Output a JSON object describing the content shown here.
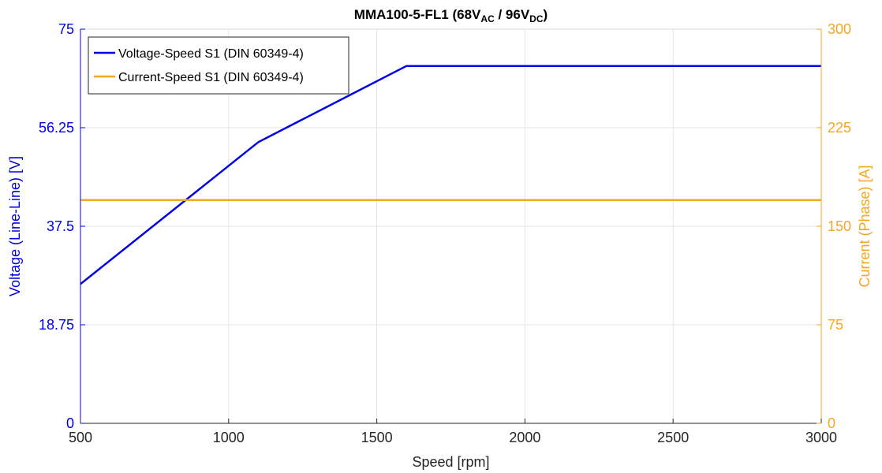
{
  "chart_data": {
    "type": "line",
    "title": {
      "base": "MMA100-5-FL1 (68V",
      "sub1": "AC",
      "mid": " / 96V",
      "sub2": "DC",
      "end": ")"
    },
    "xlabel": "Speed [rpm]",
    "ylabel_left": "Voltage (Line-Line) [V]",
    "ylabel_right": "Current (Phase) [A]",
    "xlim": [
      500,
      3000
    ],
    "ylim_left": [
      0,
      75
    ],
    "ylim_right": [
      0,
      300
    ],
    "xticks": [
      500,
      1000,
      1500,
      2000,
      2500,
      3000
    ],
    "yticks_left": [
      "0",
      "18.75",
      "37.5",
      "56.25",
      "75"
    ],
    "yticks_left_values": [
      0,
      18.75,
      37.5,
      56.25,
      75
    ],
    "yticks_right": [
      0,
      75,
      150,
      225,
      300
    ],
    "grid": true,
    "legend_position": "top-left",
    "series": [
      {
        "name": "Voltage-Speed S1 (DIN 60349-4)",
        "axis": "left",
        "color": "#0000e6",
        "x": [
          500,
          1100,
          1600,
          3000
        ],
        "y": [
          26.5,
          53.5,
          68,
          68
        ]
      },
      {
        "name": "Current-Speed S1 (DIN 60349-4)",
        "axis": "right",
        "color": "#f5a623",
        "x": [
          500,
          3000
        ],
        "y": [
          170,
          170
        ]
      }
    ]
  }
}
